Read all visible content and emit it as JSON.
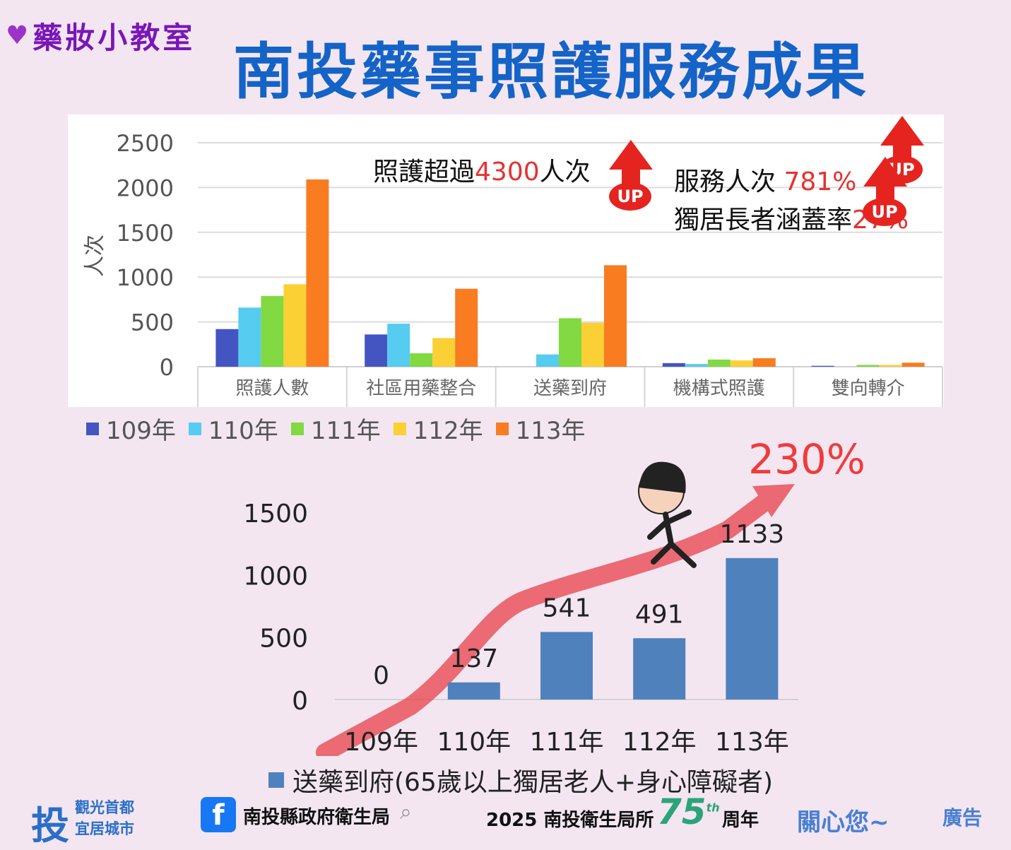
{
  "badge": {
    "label": "藥妝小教室"
  },
  "title": "南投藥事照護服務成果",
  "top_annotations": {
    "care_prefix": "照護超過",
    "care_value": "4300",
    "care_suffix": "人次",
    "service_prefix": "服務人次 ",
    "service_value": "781%",
    "coverage_prefix": "獨居長者涵蓋率",
    "coverage_value": "27%",
    "up_label": "UP"
  },
  "bottom_annotations": {
    "growth": "230%"
  },
  "footer": {
    "logo": "投",
    "slogan_1": "觀光首都",
    "slogan_2": "宜居城市",
    "fb_icon": "f",
    "fb_name": "南投縣政府衛生局",
    "year_text": "2025  南投衛生局所",
    "seventy_five": "75",
    "th": "th",
    "anniversary": "周年",
    "care": "關心您~",
    "ad": "廣告"
  },
  "colors": {
    "y109": "#4455c2",
    "y110": "#55ccf0",
    "y111": "#82d942",
    "y112": "#fbd034",
    "y113": "#f97c21",
    "bottom_bar": "#4f81bd",
    "arrow": "#e84048"
  },
  "chart_data": [
    {
      "type": "bar",
      "title": "",
      "ylabel": "人次",
      "ylim": [
        0,
        2500
      ],
      "yticks": [
        0,
        500,
        1000,
        1500,
        2000,
        2500
      ],
      "categories": [
        "照護人數",
        "社區用藥整合",
        "送藥到府",
        "機構式照護",
        "雙向轉介"
      ],
      "series": [
        {
          "name": "109年",
          "values": [
            420,
            360,
            0,
            40,
            10
          ]
        },
        {
          "name": "110年",
          "values": [
            660,
            480,
            137,
            30,
            0
          ]
        },
        {
          "name": "111年",
          "values": [
            790,
            150,
            541,
            80,
            20
          ]
        },
        {
          "name": "112年",
          "values": [
            920,
            320,
            491,
            70,
            20
          ]
        },
        {
          "name": "113年",
          "values": [
            2090,
            870,
            1133,
            95,
            45
          ]
        }
      ],
      "grid": true,
      "legend": "bottom"
    },
    {
      "type": "bar",
      "title": "",
      "ylim": [
        0,
        1500
      ],
      "yticks": [
        0,
        500,
        1000,
        1500
      ],
      "categories": [
        "109年",
        "110年",
        "111年",
        "112年",
        "113年"
      ],
      "series": [
        {
          "name": "送藥到府(65歲以上獨居老人+身心障礙者)",
          "values": [
            0,
            137,
            541,
            491,
            1133
          ]
        }
      ],
      "data_labels": [
        "0",
        "137",
        "541",
        "491",
        "1133"
      ],
      "legend": "bottom"
    }
  ]
}
